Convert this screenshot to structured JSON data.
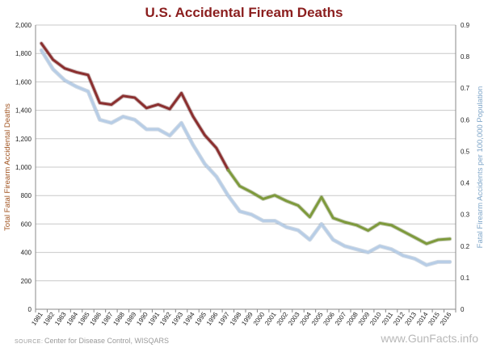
{
  "chart_data": {
    "type": "line",
    "title": "U.S. Accidental Fiream Deaths",
    "ylabel": "Total Fatal Firearm Accidental Deaths",
    "y2label": "Fatal Firearm Accidents per 100,000 Population",
    "ylim": [
      0,
      2000
    ],
    "y2lim": [
      0,
      0.9
    ],
    "yticks": [
      "0",
      "200",
      "400",
      "600",
      "800",
      "1,000",
      "1,200",
      "1,400",
      "1,600",
      "1,800",
      "2,000"
    ],
    "y2ticks": [
      "0",
      "0.1",
      "0.2",
      "0.3",
      "0.4",
      "0.5",
      "0.6",
      "0.7",
      "0.8",
      "0.9"
    ],
    "x": [
      "1981",
      "1982",
      "1983",
      "1984",
      "1985",
      "1986",
      "1987",
      "1988",
      "1989",
      "1990",
      "1991",
      "1992",
      "1993",
      "1994",
      "1995",
      "1996",
      "1997",
      "1998",
      "1999",
      "2000",
      "2001",
      "2002",
      "2003",
      "2004",
      "2005",
      "2006",
      "2007",
      "2008",
      "2009",
      "2010",
      "2011",
      "2012",
      "2013",
      "2014",
      "2015",
      "2016"
    ],
    "grid": true,
    "series": [
      {
        "axis": "left",
        "color_early": "#8b2f2f",
        "color_late": "#7e9a3c",
        "color_switch_year": "1997",
        "values": [
          1871,
          1756,
          1695,
          1668,
          1649,
          1452,
          1440,
          1501,
          1489,
          1416,
          1441,
          1409,
          1521,
          1356,
          1225,
          1134,
          981,
          866,
          824,
          776,
          802,
          762,
          730,
          649,
          789,
          642,
          613,
          592,
          554,
          606,
          591,
          548,
          505,
          461,
          489,
          495
        ]
      },
      {
        "axis": "right",
        "color": "#b7cde6",
        "values": [
          0.82,
          0.76,
          0.725,
          0.705,
          0.69,
          0.6,
          0.59,
          0.61,
          0.6,
          0.57,
          0.57,
          0.55,
          0.59,
          0.52,
          0.46,
          0.42,
          0.36,
          0.31,
          0.3,
          0.28,
          0.28,
          0.26,
          0.25,
          0.22,
          0.27,
          0.22,
          0.2,
          0.19,
          0.18,
          0.2,
          0.19,
          0.17,
          0.16,
          0.14,
          0.15,
          0.15
        ]
      }
    ]
  },
  "footer": {
    "source_label": "SOURCE:",
    "source_text": "Center for Disease Control, WISQARS",
    "watermark": "www.GunFacts.info"
  }
}
